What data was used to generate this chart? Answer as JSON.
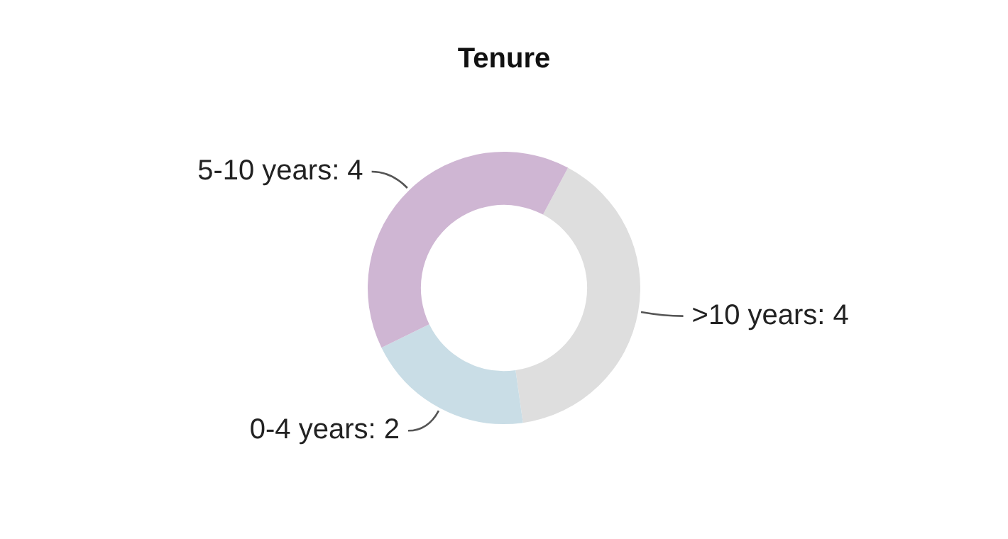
{
  "chart_data": {
    "type": "donut",
    "title": "Tenure",
    "categories": [
      ">10 years",
      "0-4 years",
      "5-10 years"
    ],
    "values": [
      4,
      2,
      4
    ],
    "value_labels": [
      ": 4",
      ": 2",
      ": 4"
    ],
    "colors": [
      "#dedede",
      "#c9dde6",
      "#cfb6d3"
    ],
    "legend": false
  }
}
